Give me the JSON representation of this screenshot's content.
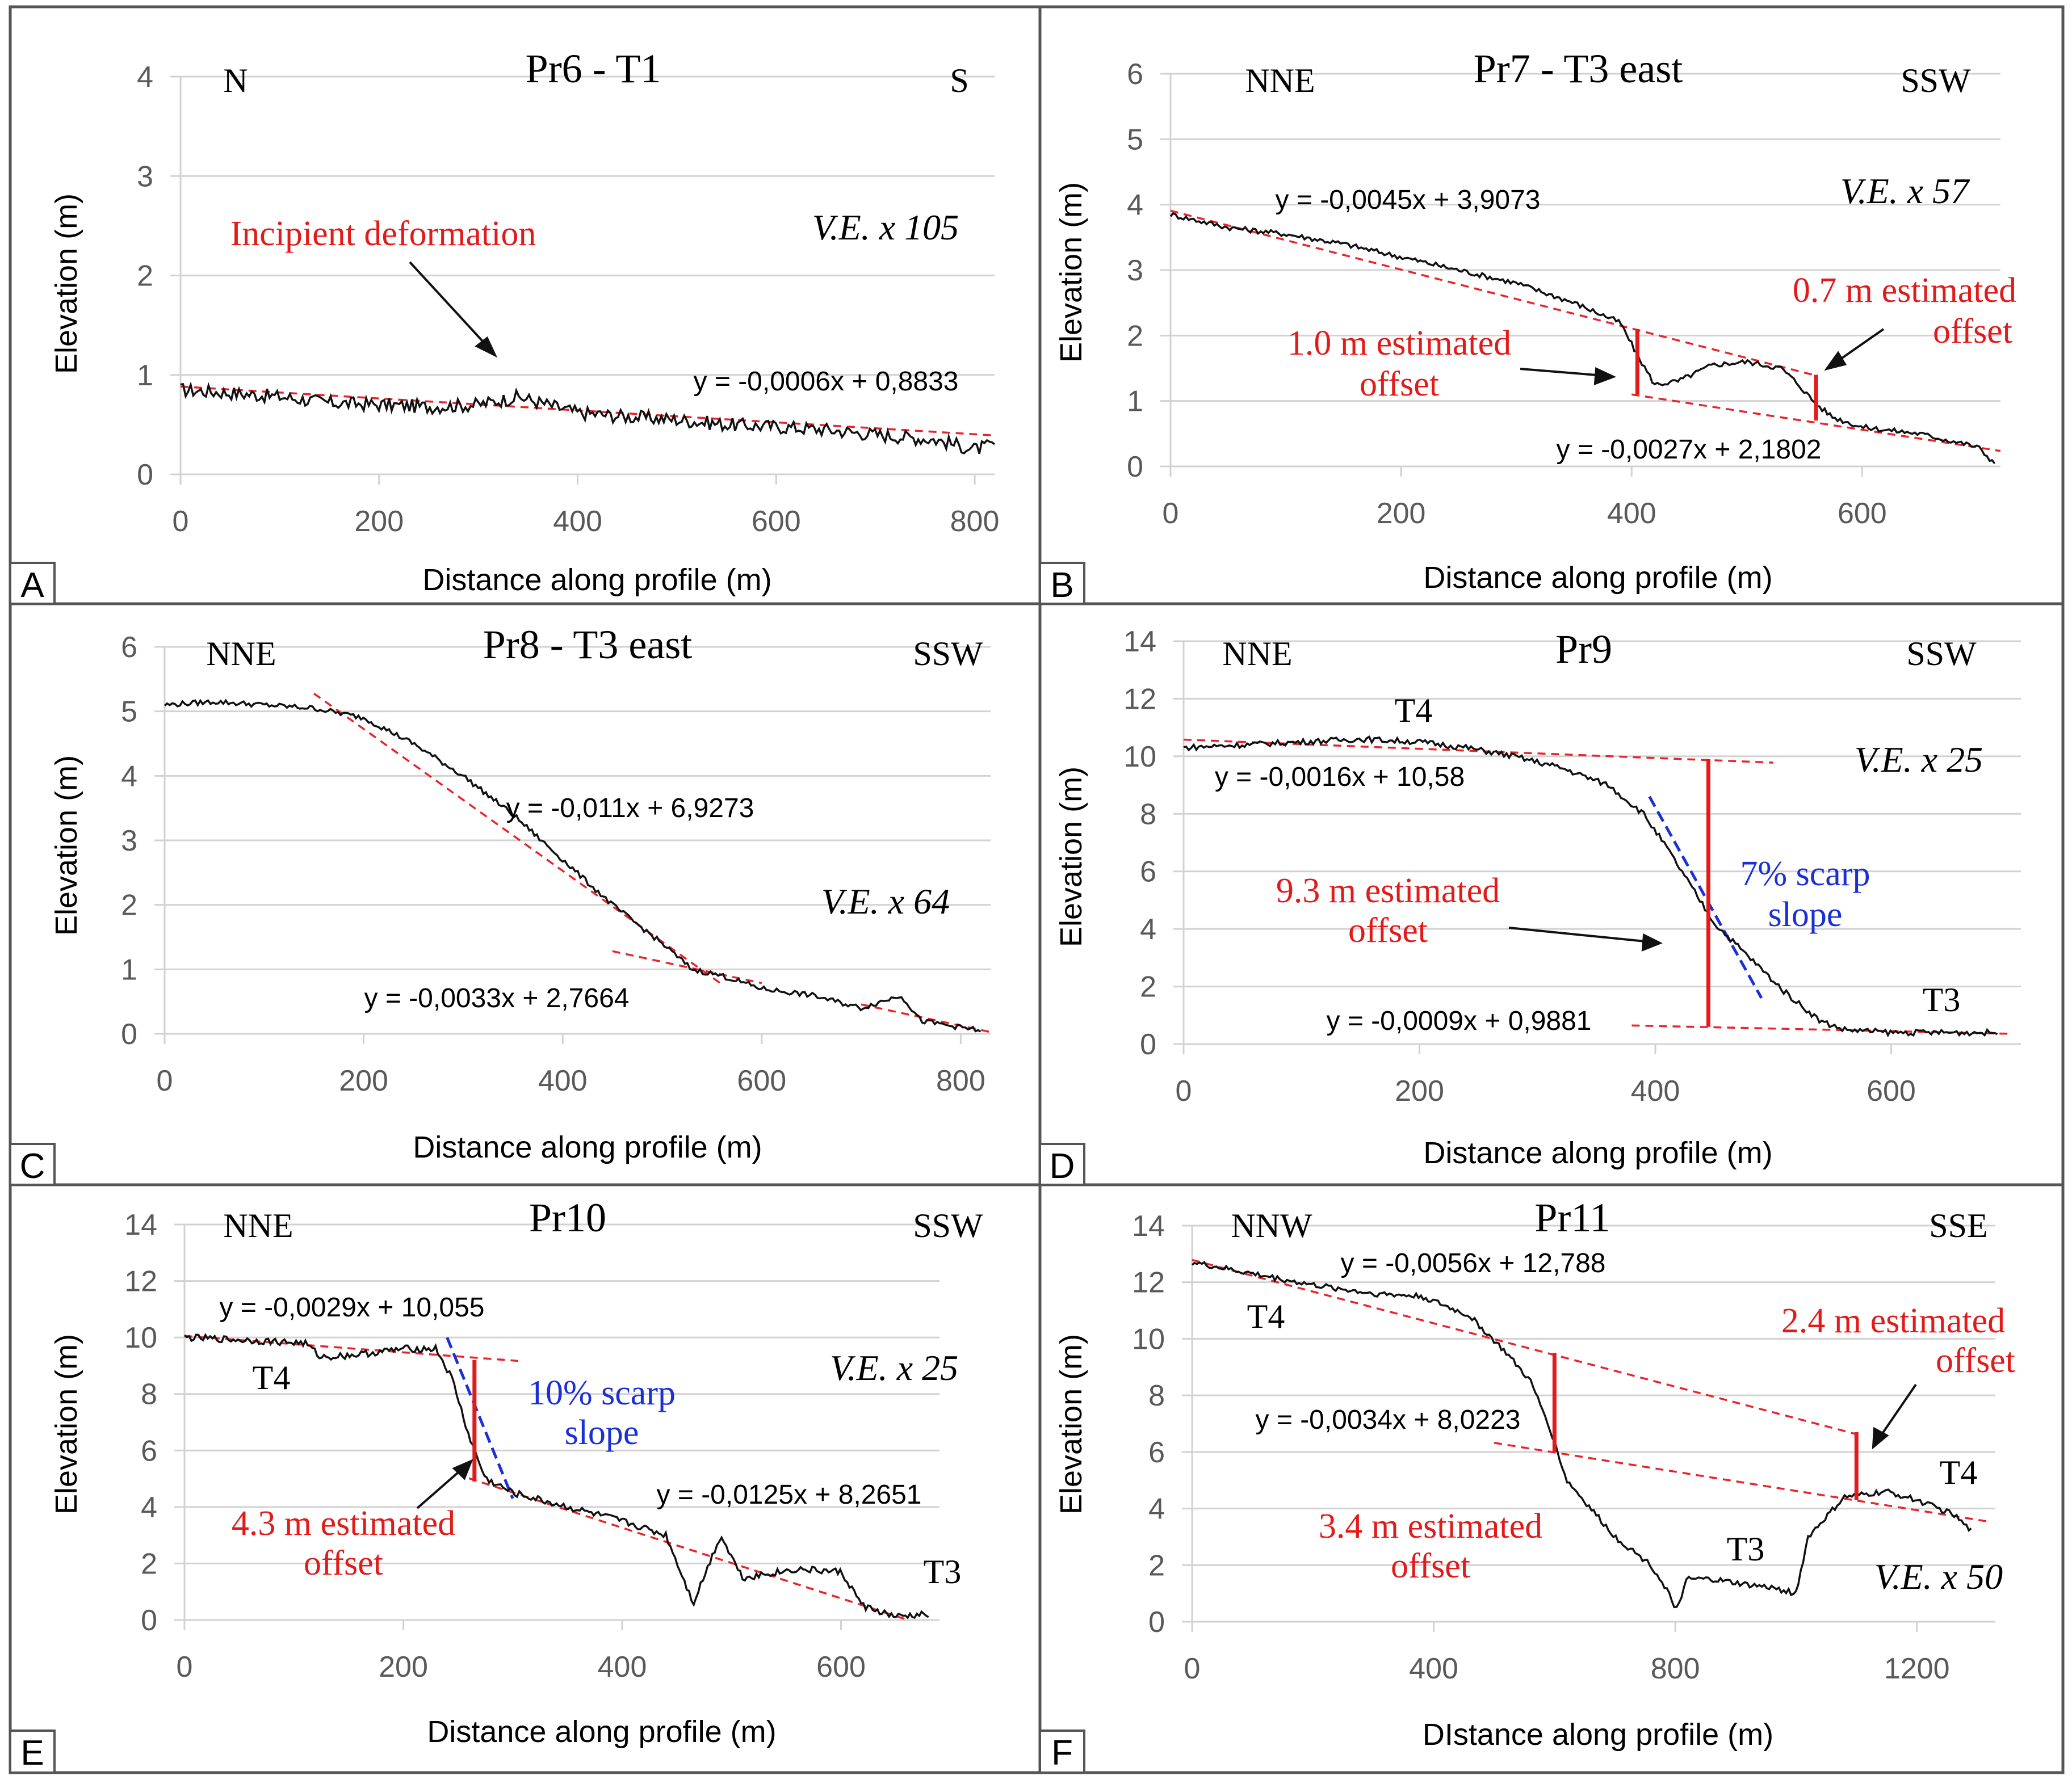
{
  "figure": {
    "colors": {
      "profile": "#111111",
      "fit": "#e8242a",
      "offset": "#e21a1a",
      "scarp": "#1a2fd6",
      "annotation": "#e21a1a",
      "scarp_text": "#1a2fd6",
      "grid": "#d2d2d2",
      "axis_text": "#595959"
    }
  },
  "chart_data": [
    {
      "panel": "A",
      "type": "line",
      "title": "Pr6 - T1",
      "xlabel": "Distance along profile (m)",
      "ylabel": "Elevation (m)",
      "xlim": [
        0,
        820
      ],
      "ylim": [
        0,
        4
      ],
      "xticks": [
        0,
        200,
        400,
        600,
        800
      ],
      "yticks": [
        0,
        1,
        2,
        3,
        4
      ],
      "dir_left": "N",
      "dir_right": "S",
      "ve": "V.E. x 105",
      "profile": {
        "x": [
          0,
          50,
          100,
          150,
          200,
          250,
          300,
          340,
          400,
          450,
          500,
          550,
          600,
          650,
          700,
          760,
          800,
          820
        ],
        "y": [
          0.85,
          0.82,
          0.78,
          0.72,
          0.7,
          0.68,
          0.7,
          0.78,
          0.62,
          0.58,
          0.55,
          0.5,
          0.48,
          0.45,
          0.4,
          0.35,
          0.25,
          0.3
        ],
        "noise": 0.07
      },
      "fits": [
        {
          "slope": -0.0006,
          "intercept": 0.8833,
          "x0": 0,
          "x1": 820,
          "label": "y = -0,0006x + 0,8833"
        }
      ],
      "offsets": [],
      "scarp": null,
      "annotations": [
        "Incipient deformation"
      ],
      "terrace_labels": []
    },
    {
      "panel": "B",
      "type": "line",
      "title": "Pr7 - T3 east",
      "xlabel": "Distance along profile (m)",
      "ylabel": "Elevation (m)",
      "xlim": [
        0,
        720
      ],
      "ylim": [
        0,
        6
      ],
      "xticks": [
        0,
        200,
        400,
        600
      ],
      "yticks": [
        0,
        1,
        2,
        3,
        4,
        5,
        6
      ],
      "dir_left": "NNE",
      "dir_right": "SSW",
      "ve": "V.E. x 57",
      "profile": {
        "x": [
          0,
          50,
          100,
          150,
          200,
          250,
          300,
          350,
          390,
          405,
          420,
          440,
          470,
          500,
          530,
          545,
          560,
          575,
          600,
          650,
          700,
          715
        ],
        "y": [
          3.85,
          3.65,
          3.55,
          3.4,
          3.2,
          3.0,
          2.8,
          2.5,
          2.2,
          1.7,
          1.25,
          1.3,
          1.55,
          1.6,
          1.5,
          1.25,
          0.95,
          0.75,
          0.6,
          0.5,
          0.3,
          0.05
        ],
        "noise": 0.04
      },
      "fits": [
        {
          "slope": -0.0045,
          "intercept": 3.9073,
          "x0": 0,
          "x1": 560,
          "label": "y = -0,0045x + 3,9073"
        },
        {
          "slope": -0.0027,
          "intercept": 2.1802,
          "x0": 400,
          "x1": 720,
          "label": "y = -0,0027x + 2,1802"
        }
      ],
      "offsets": [
        {
          "x": 405,
          "y0": 1.1,
          "y1": 2.1
        },
        {
          "x": 560,
          "y0": 0.7,
          "y1": 1.4
        }
      ],
      "scarp": null,
      "annotations": [
        "1.0 m estimated",
        "offset",
        "0.7 m estimated",
        "offset"
      ],
      "terrace_labels": []
    },
    {
      "panel": "C",
      "type": "line",
      "title": "Pr8 - T3 east",
      "xlabel": "Distance along profile (m)",
      "ylabel": "Elevation (m)",
      "xlim": [
        0,
        830
      ],
      "ylim": [
        0,
        6
      ],
      "xticks": [
        0,
        200,
        400,
        600,
        800
      ],
      "yticks": [
        0,
        1,
        2,
        3,
        4,
        5,
        6
      ],
      "dir_left": "NNE",
      "dir_right": "SSW",
      "ve": "V.E. x 64",
      "profile": {
        "x": [
          0,
          50,
          100,
          150,
          200,
          250,
          300,
          350,
          400,
          450,
          500,
          530,
          560,
          600,
          650,
          700,
          740,
          760,
          800,
          820
        ],
        "y": [
          5.1,
          5.15,
          5.1,
          5.05,
          4.9,
          4.5,
          4.0,
          3.4,
          2.7,
          2.0,
          1.4,
          1.0,
          0.9,
          0.7,
          0.6,
          0.4,
          0.6,
          0.2,
          0.1,
          0.05
        ],
        "noise": 0.04
      },
      "fits": [
        {
          "slope": -0.011,
          "intercept": 6.9273,
          "x0": 150,
          "x1": 560,
          "label": "y = -0,011x + 6,9273"
        },
        {
          "slope": -0.0033,
          "intercept": 2.7664,
          "x0": 450,
          "x1": 600,
          "label": "y = -0,0033x + 2,7664"
        },
        {
          "slope": -0.0033,
          "intercept": 2.7664,
          "x0": 700,
          "x1": 830,
          "label": ""
        }
      ],
      "offsets": [],
      "scarp": null,
      "annotations": [],
      "terrace_labels": []
    },
    {
      "panel": "D",
      "type": "line",
      "title": "Pr9",
      "xlabel": "Distance along profile (m)",
      "ylabel": "Elevation (m)",
      "xlim": [
        0,
        710
      ],
      "ylim": [
        0,
        14
      ],
      "xticks": [
        0,
        200,
        400,
        600
      ],
      "yticks": [
        0,
        2,
        4,
        6,
        8,
        10,
        12,
        14
      ],
      "dir_left": "NNE",
      "dir_right": "SSW",
      "ve": "V.E. x 25",
      "profile": {
        "x": [
          0,
          50,
          100,
          150,
          200,
          240,
          280,
          320,
          360,
          390,
          410,
          430,
          450,
          480,
          510,
          540,
          560,
          600,
          640,
          690
        ],
        "y": [
          10.3,
          10.4,
          10.5,
          10.6,
          10.5,
          10.3,
          10.0,
          9.6,
          9.0,
          8.0,
          6.8,
          5.5,
          4.2,
          3.0,
          1.8,
          0.8,
          0.5,
          0.4,
          0.4,
          0.4
        ],
        "noise": 0.1
      },
      "fits": [
        {
          "slope": -0.0016,
          "intercept": 10.58,
          "x0": 0,
          "x1": 500,
          "label": "y = -0,0016x + 10,58"
        },
        {
          "slope": -0.0009,
          "intercept": 0.9881,
          "x0": 380,
          "x1": 700,
          "label": "y = -0,0009x + 0,9881"
        }
      ],
      "offsets": [
        {
          "x": 445,
          "y0": 0.6,
          "y1": 9.9
        }
      ],
      "scarp": {
        "x0": 395,
        "y0": 8.6,
        "x1": 490,
        "y1": 1.6
      },
      "annotations": [
        "9.3 m estimated",
        "offset",
        "7% scarp",
        "slope"
      ],
      "terrace_labels": [
        "T4",
        "T3"
      ]
    },
    {
      "panel": "E",
      "type": "line",
      "title": "Pr10",
      "xlabel": "Distance along profile (m)",
      "ylabel": "Elevation (m)",
      "xlim": [
        0,
        690
      ],
      "ylim": [
        0,
        14
      ],
      "xticks": [
        0,
        200,
        400,
        600
      ],
      "yticks": [
        0,
        2,
        4,
        6,
        8,
        10,
        12,
        14
      ],
      "dir_left": "NNE",
      "dir_right": "SSW",
      "ve": "V.E. x 25",
      "profile": {
        "x": [
          0,
          60,
          110,
          125,
          160,
          200,
          230,
          245,
          260,
          275,
          300,
          350,
          400,
          440,
          465,
          490,
          510,
          560,
          600,
          620,
          650,
          680
        ],
        "y": [
          10.0,
          9.9,
          9.8,
          9.3,
          9.4,
          9.6,
          9.6,
          8.5,
          6.5,
          5.0,
          4.5,
          4.0,
          3.5,
          3.0,
          0.6,
          3.0,
          1.5,
          1.8,
          1.7,
          0.5,
          0.1,
          0.2
        ],
        "noise": 0.12
      },
      "fits": [
        {
          "slope": -0.0029,
          "intercept": 10.055,
          "x0": 0,
          "x1": 305,
          "label": "y = -0,0029x + 10,055"
        },
        {
          "slope": -0.0125,
          "intercept": 8.2651,
          "x0": 260,
          "x1": 660,
          "label": "y = -0,0125x + 8,2651"
        }
      ],
      "offsets": [
        {
          "x": 265,
          "y0": 4.9,
          "y1": 9.2
        }
      ],
      "scarp": {
        "x0": 240,
        "y0": 10.0,
        "x1": 300,
        "y1": 4.3
      },
      "annotations": [
        "4.3 m estimated",
        "offset",
        "10% scarp",
        "slope"
      ],
      "terrace_labels": [
        "T4",
        "T3"
      ]
    },
    {
      "panel": "F",
      "type": "line",
      "title": "Pr11",
      "xlabel": "DIstance along profile (m)",
      "ylabel": "Elevation (m)",
      "xlim": [
        0,
        1330
      ],
      "ylim": [
        0,
        14
      ],
      "xticks": [
        0,
        400,
        800,
        1200
      ],
      "yticks": [
        0,
        2,
        4,
        6,
        8,
        10,
        12,
        14
      ],
      "dir_left": "NNW",
      "dir_right": "SSE",
      "ve": "V.E. x 50",
      "profile": {
        "x": [
          0,
          100,
          200,
          300,
          380,
          460,
          520,
          560,
          590,
          620,
          700,
          760,
          790,
          800,
          820,
          860,
          920,
          960,
          1000,
          1020,
          1080,
          1150,
          1200,
          1260,
          1290
        ],
        "y": [
          12.7,
          12.3,
          11.9,
          11.6,
          11.5,
          10.8,
          9.5,
          8.5,
          7.0,
          5.0,
          3.0,
          2.0,
          1.0,
          0.3,
          1.5,
          1.5,
          1.3,
          1.2,
          1.0,
          3.0,
          4.4,
          4.6,
          4.3,
          3.8,
          3.2
        ],
        "noise": 0.1
      },
      "fits": [
        {
          "slope": -0.0056,
          "intercept": 12.788,
          "x0": 0,
          "x1": 1100,
          "label": "y = -0,0056x + 12,788"
        },
        {
          "slope": -0.0034,
          "intercept": 8.0223,
          "x0": 500,
          "x1": 1320,
          "label": "y = -0,0034x + 8,0223"
        }
      ],
      "offsets": [
        {
          "x": 600,
          "y0": 6.0,
          "y1": 9.5
        },
        {
          "x": 1100,
          "y0": 4.3,
          "y1": 6.7
        }
      ],
      "scarp": null,
      "annotations": [
        "3.4 m estimated",
        "offset",
        "2.4 m estimated",
        "offset"
      ],
      "terrace_labels": [
        "T4",
        "T3",
        "T4"
      ]
    }
  ]
}
